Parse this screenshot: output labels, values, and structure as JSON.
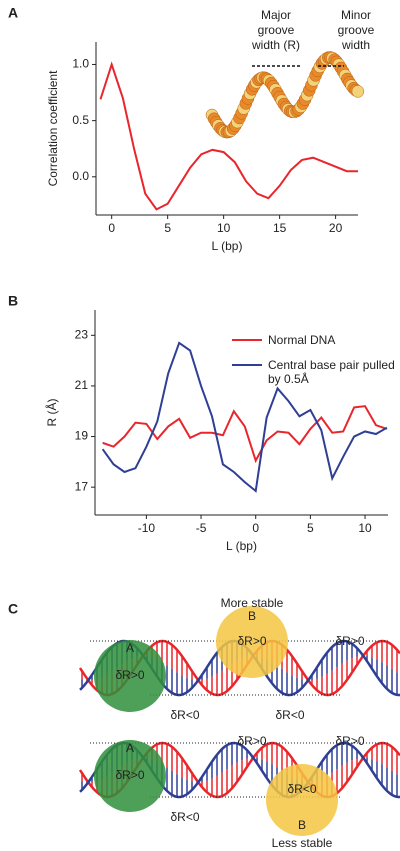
{
  "chart_data": [
    {
      "type": "line",
      "panel_label": "A",
      "y_label": "Correlation coefficient",
      "x_label": "L (bp)",
      "x": [
        -1,
        0,
        1,
        2,
        3,
        4,
        5,
        6,
        7,
        8,
        9,
        10,
        11,
        12,
        13,
        14,
        15,
        16,
        17,
        18,
        19,
        20,
        21,
        22
      ],
      "values": [
        0.69,
        1.0,
        0.7,
        0.25,
        -0.15,
        -0.29,
        -0.24,
        -0.08,
        0.08,
        0.2,
        0.24,
        0.22,
        0.13,
        -0.04,
        -0.15,
        -0.19,
        -0.08,
        0.06,
        0.15,
        0.17,
        0.13,
        0.09,
        0.05,
        0.05
      ],
      "color": "#e8262b",
      "xlim": [
        -1.4,
        22
      ],
      "xticks": [
        0,
        5,
        10,
        15,
        20
      ],
      "ylim": [
        -0.34,
        1.2
      ],
      "yticks": [
        {
          "value": 0,
          "label": "0.0"
        },
        {
          "value": 0.5,
          "label": "0.5"
        },
        {
          "value": 1,
          "label": "1.0"
        }
      ],
      "annotations": {
        "major": [
          "Major",
          "groove",
          "width (R)"
        ],
        "minor": [
          "Minor",
          "groove",
          "width"
        ]
      }
    },
    {
      "type": "line",
      "panel_label": "B",
      "y_label": "R (Å)",
      "x_label": "L (bp)",
      "x": [
        -14,
        -13,
        -12,
        -11,
        -10,
        -9,
        -8,
        -7,
        -6,
        -5,
        -4,
        -3,
        -2,
        -1,
        0,
        1,
        2,
        3,
        4,
        5,
        6,
        7,
        8,
        9,
        10,
        11,
        12
      ],
      "series": [
        {
          "name": "Normal DNA",
          "color": "#e8262b",
          "values": [
            18.75,
            18.6,
            19.0,
            19.55,
            19.5,
            18.9,
            19.4,
            19.7,
            18.95,
            19.15,
            19.15,
            19.05,
            20.0,
            19.4,
            18.05,
            18.85,
            19.2,
            19.15,
            18.7,
            19.3,
            19.75,
            19.15,
            19.2,
            20.15,
            20.2,
            19.45,
            19.3
          ]
        },
        {
          "name": "Central base pair pulled by 0.5Å",
          "color": "#2e3f95",
          "values": [
            18.5,
            17.9,
            17.6,
            17.75,
            18.6,
            19.6,
            21.5,
            22.7,
            22.4,
            21.0,
            19.8,
            17.9,
            17.6,
            17.2,
            16.85,
            19.75,
            20.9,
            20.4,
            19.8,
            20.05,
            19.25,
            17.35,
            18.2,
            19.0,
            19.2,
            19.1,
            19.35
          ]
        }
      ],
      "xlim": [
        -14.7,
        12.1
      ],
      "xticks": [
        -10,
        -5,
        0,
        5,
        10
      ],
      "ylim": [
        15.9,
        24
      ],
      "yticks": [
        17,
        19,
        21,
        23
      ],
      "legend": "top-right"
    }
  ],
  "diagram": {
    "panel_label": "C",
    "top": {
      "caption": "More stable",
      "circle_a": "A",
      "circle_b": "B",
      "labels": [
        "δR>0",
        "δR>0",
        "δR>0",
        "δR<0",
        "δR<0"
      ]
    },
    "bottom": {
      "caption": "Less stable",
      "circle_a": "A",
      "circle_b": "B",
      "labels": [
        "δR>0",
        "δR>0",
        "δR>0",
        "δR<0",
        "δR<0"
      ]
    }
  }
}
